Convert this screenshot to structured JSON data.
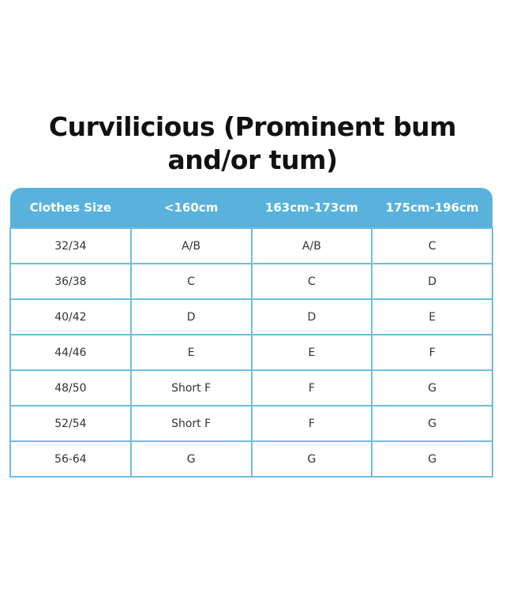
{
  "title": "Curvilicious (Prominent bum and/or tum)",
  "table": {
    "headers": [
      "Clothes Size",
      "<160cm",
      "163cm-173cm",
      "175cm-196cm"
    ],
    "rows": [
      [
        "32/34",
        "A/B",
        "A/B",
        "C"
      ],
      [
        "36/38",
        "C",
        "C",
        "D"
      ],
      [
        "40/42",
        "D",
        "D",
        "E"
      ],
      [
        "44/46",
        "E",
        "E",
        "F"
      ],
      [
        "48/50",
        "Short F",
        "F",
        "G"
      ],
      [
        "52/54",
        "Short F",
        "F",
        "G"
      ],
      [
        "56-64",
        "G",
        "G",
        "G"
      ]
    ]
  },
  "colors": {
    "header_bg": "#58b2dc",
    "border": "#6cbde3"
  }
}
